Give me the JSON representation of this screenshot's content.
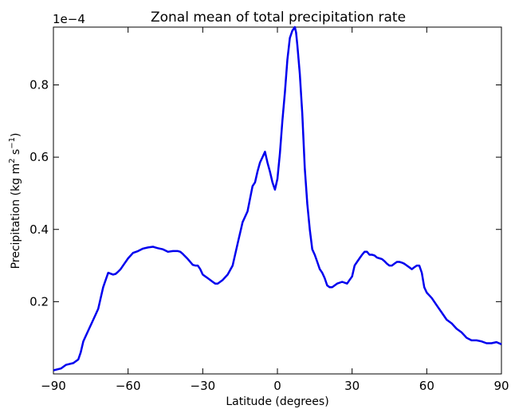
{
  "chart_data": {
    "type": "line",
    "title": "Zonal mean of total precipitation rate",
    "xlabel": "Latitude (degrees)",
    "ylabel_main": "Precipitation (kg m",
    "ylabel_sup1": "2",
    "ylabel_mid": " s",
    "ylabel_sup2": "−1",
    "ylabel_end": ")",
    "y_scale_label": "1e−4",
    "xlim": [
      -90,
      90
    ],
    "ylim": [
      0.0,
      0.96
    ],
    "xticks": [
      -90,
      -60,
      -30,
      0,
      30,
      60,
      90
    ],
    "xtick_labels": [
      "−90",
      "−60",
      "−30",
      "0",
      "30",
      "60",
      "90"
    ],
    "yticks": [
      0.2,
      0.4,
      0.6,
      0.8
    ],
    "ytick_labels": [
      "0.2",
      "0.4",
      "0.6",
      "0.8"
    ],
    "grid": false,
    "line_color": "#0000ee",
    "series": [
      {
        "x": [
          -90,
          -87,
          -85,
          -82,
          -80,
          -79,
          -78,
          -76,
          -74,
          -72,
          -71,
          -70,
          -68,
          -66,
          -65,
          -64,
          -63,
          -62,
          -60,
          -58,
          -56,
          -54,
          -52,
          -50,
          -49,
          -48,
          -46,
          -44,
          -42,
          -40,
          -39,
          -38,
          -36,
          -34,
          -33,
          -32,
          -31,
          -30,
          -28,
          -26,
          -25,
          -24,
          -22,
          -20,
          -18,
          -16,
          -14,
          -12,
          -10,
          -9,
          -8,
          -7,
          -6,
          -5,
          -4,
          -3,
          -2,
          -1,
          0,
          1,
          2,
          3,
          4,
          5,
          6,
          7,
          7.5,
          8,
          9,
          10,
          11,
          12,
          13,
          14,
          15,
          16,
          17,
          18,
          19,
          20,
          21,
          22,
          23,
          24,
          26,
          28,
          29,
          30,
          31,
          32,
          33,
          34,
          35,
          36,
          37,
          38,
          39,
          40,
          41,
          42,
          43,
          44,
          45,
          46,
          47,
          48,
          49,
          50,
          51,
          52,
          53,
          54,
          55,
          56,
          57,
          58,
          59,
          60,
          62,
          64,
          66,
          68,
          70,
          72,
          74,
          76,
          78,
          80,
          82,
          84,
          86,
          88,
          90
        ],
        "y": [
          0.01,
          0.015,
          0.025,
          0.03,
          0.04,
          0.06,
          0.09,
          0.12,
          0.15,
          0.18,
          0.21,
          0.24,
          0.28,
          0.275,
          0.277,
          0.283,
          0.29,
          0.3,
          0.32,
          0.335,
          0.34,
          0.347,
          0.35,
          0.352,
          0.35,
          0.348,
          0.345,
          0.338,
          0.34,
          0.34,
          0.338,
          0.332,
          0.318,
          0.302,
          0.3,
          0.3,
          0.29,
          0.275,
          0.265,
          0.255,
          0.25,
          0.25,
          0.26,
          0.275,
          0.3,
          0.36,
          0.42,
          0.45,
          0.52,
          0.53,
          0.56,
          0.585,
          0.6,
          0.615,
          0.585,
          0.56,
          0.53,
          0.51,
          0.54,
          0.61,
          0.7,
          0.78,
          0.87,
          0.93,
          0.95,
          0.96,
          0.945,
          0.91,
          0.83,
          0.72,
          0.57,
          0.47,
          0.4,
          0.345,
          0.33,
          0.31,
          0.29,
          0.28,
          0.265,
          0.245,
          0.24,
          0.24,
          0.245,
          0.25,
          0.255,
          0.25,
          0.26,
          0.27,
          0.3,
          0.31,
          0.32,
          0.33,
          0.338,
          0.338,
          0.33,
          0.33,
          0.328,
          0.322,
          0.32,
          0.318,
          0.312,
          0.305,
          0.3,
          0.3,
          0.305,
          0.31,
          0.31,
          0.308,
          0.305,
          0.3,
          0.295,
          0.29,
          0.295,
          0.3,
          0.3,
          0.28,
          0.24,
          0.225,
          0.21,
          0.19,
          0.17,
          0.15,
          0.14,
          0.125,
          0.115,
          0.1,
          0.093,
          0.093,
          0.09,
          0.085,
          0.085,
          0.088,
          0.082
        ]
      }
    ]
  }
}
